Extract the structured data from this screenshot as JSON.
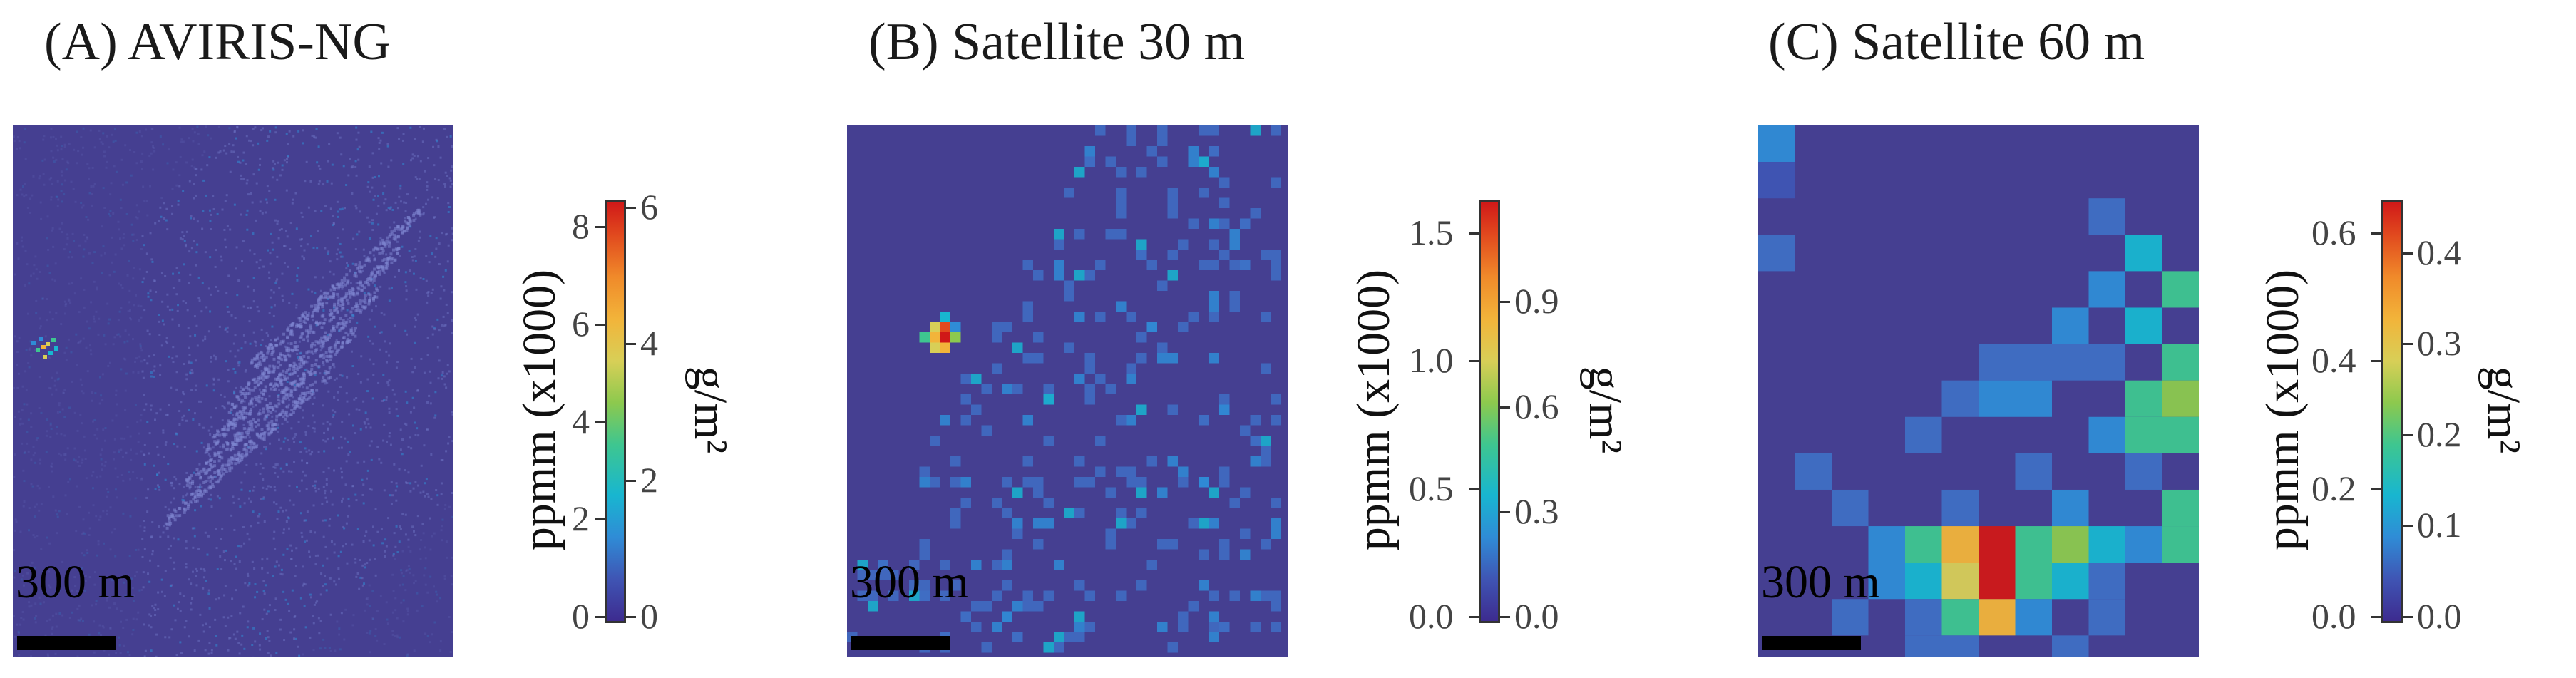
{
  "panels": [
    {
      "title": "(A) AVIRIS-NG",
      "scale_label": "300 m",
      "colorbar": {
        "left_label": "ppmm (x1000)",
        "right_label": "g/m²",
        "left_ticks": [
          "0",
          "2",
          "4",
          "6",
          "8"
        ],
        "left_values": [
          0,
          2,
          4,
          6,
          8
        ],
        "left_max": 8.4,
        "right_ticks": [
          "0",
          "2",
          "4",
          "6"
        ],
        "right_values": [
          0,
          2,
          4,
          6
        ],
        "right_max": 6.0
      }
    },
    {
      "title": "(B) Satellite 30 m",
      "scale_label": "300 m",
      "colorbar": {
        "left_label": "ppmm (x1000)",
        "right_label": "g/m²",
        "left_ticks": [
          "0.0",
          "0.5",
          "1.0",
          "1.5"
        ],
        "left_values": [
          0.0,
          0.5,
          1.0,
          1.5
        ],
        "left_max": 1.6,
        "right_ticks": [
          "0.0",
          "0.3",
          "0.6",
          "0.9"
        ],
        "right_values": [
          0.0,
          0.3,
          0.6,
          0.9
        ],
        "right_max": 1.17
      }
    },
    {
      "title": "(C) Satellite 60 m",
      "scale_label": "300 m",
      "colorbar": {
        "left_label": "ppmm (x1000)",
        "right_label": "g/m²",
        "left_ticks": [
          "0.0",
          "0.2",
          "0.4",
          "0.6"
        ],
        "left_values": [
          0.0,
          0.2,
          0.4,
          0.6
        ],
        "left_max": 0.64,
        "right_ticks": [
          "0.0",
          "0.1",
          "0.2",
          "0.3",
          "0.4"
        ],
        "right_values": [
          0.0,
          0.1,
          0.2,
          0.3,
          0.4
        ],
        "right_max": 0.45
      }
    }
  ],
  "colors": {
    "background_map": "#453f91",
    "hot": "#d01818",
    "warm": "#f2b43a",
    "mid": "#3ec690",
    "cool": "#2f8cd6"
  }
}
